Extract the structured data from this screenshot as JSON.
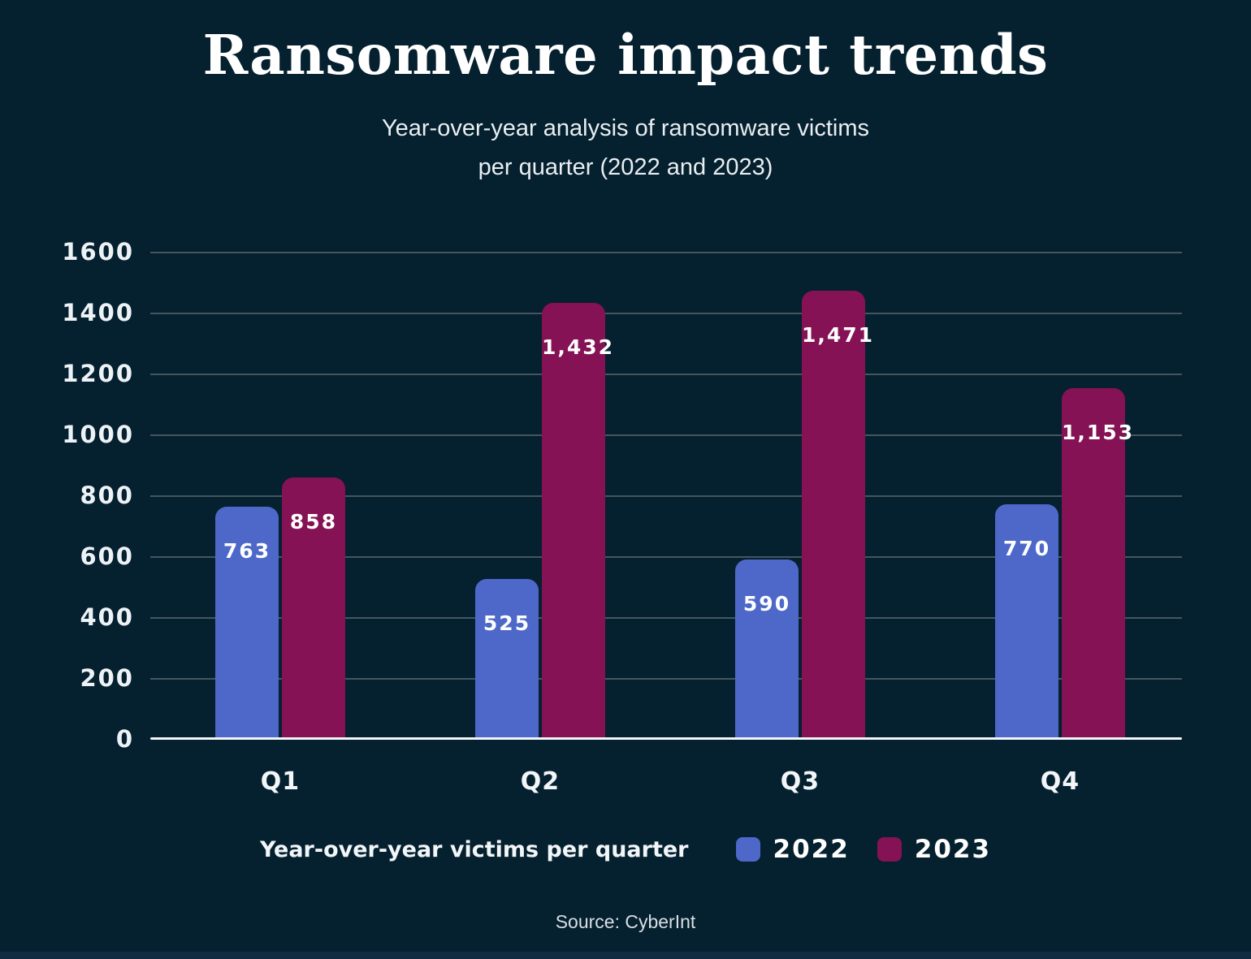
{
  "title": "Ransomware impact trends",
  "subtitle_line1": "Year-over-year analysis of ransomware victims",
  "subtitle_line2": "per quarter (2022 and 2023)",
  "source": "Source: CyberInt",
  "colors": {
    "background": "#05202e",
    "bar_2022": "#4d68c8",
    "bar_2023": "#851254",
    "gridline": "#45565f",
    "axis_line": "#f3f6f8",
    "text": "#ffffff"
  },
  "legend": {
    "label": "Year-over-year victims per quarter",
    "items": [
      {
        "name": "2022",
        "color": "#4d68c8"
      },
      {
        "name": "2023",
        "color": "#851254"
      }
    ]
  },
  "chart_data": {
    "type": "bar",
    "title": "Ransomware impact trends",
    "subtitle": "Year-over-year analysis of ransomware victims per quarter (2022 and 2023)",
    "categories": [
      "Q1",
      "Q2",
      "Q3",
      "Q4"
    ],
    "series": [
      {
        "name": "2022",
        "color": "#4d68c8",
        "values": [
          763,
          525,
          590,
          770
        ],
        "labels": [
          "763",
          "525",
          "590",
          "770"
        ]
      },
      {
        "name": "2023",
        "color": "#851254",
        "values": [
          858,
          1432,
          1471,
          1153
        ],
        "labels": [
          "858",
          "1,432",
          "1,471",
          "1,153"
        ]
      }
    ],
    "ylim": [
      0,
      1600
    ],
    "yticks": [
      0,
      200,
      400,
      600,
      800,
      1000,
      1200,
      1400,
      1600
    ],
    "grid": true,
    "legend_position": "bottom",
    "value_labels": "inside-top"
  }
}
